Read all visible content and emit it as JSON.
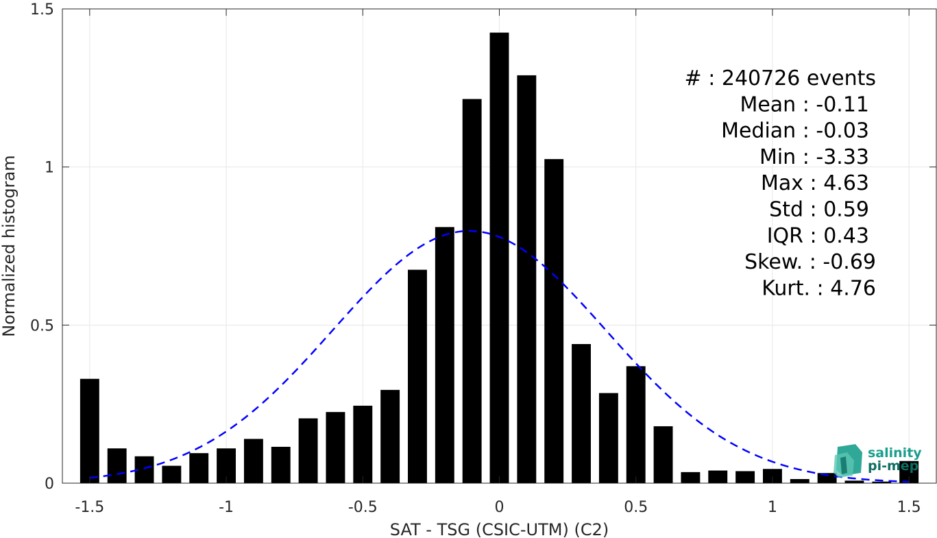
{
  "chart_data": {
    "type": "bar",
    "xlabel": "SAT - TSG (CSIC-UTM) (C2)",
    "ylabel": "Normalized histogram",
    "xlim": [
      -1.6,
      1.6
    ],
    "ylim": [
      0,
      1.5
    ],
    "xticks": [
      -1.5,
      -1,
      -0.5,
      0,
      0.5,
      1,
      1.5
    ],
    "xtick_labels": [
      "-1.5",
      "-1",
      "-0.5",
      "0",
      "0.5",
      "1",
      "1.5"
    ],
    "yticks": [
      0,
      0.5,
      1,
      1.5
    ],
    "ytick_labels": [
      "0",
      "0.5",
      "1",
      "1.5"
    ],
    "grid": true,
    "bar_color": "#000000",
    "bar_width": 0.07,
    "bins": [
      {
        "x": -1.5,
        "value": 0.33
      },
      {
        "x": -1.4,
        "value": 0.11
      },
      {
        "x": -1.3,
        "value": 0.085
      },
      {
        "x": -1.2,
        "value": 0.055
      },
      {
        "x": -1.1,
        "value": 0.095
      },
      {
        "x": -1.0,
        "value": 0.11
      },
      {
        "x": -0.9,
        "value": 0.14
      },
      {
        "x": -0.8,
        "value": 0.115
      },
      {
        "x": -0.7,
        "value": 0.205
      },
      {
        "x": -0.6,
        "value": 0.225
      },
      {
        "x": -0.5,
        "value": 0.245
      },
      {
        "x": -0.4,
        "value": 0.295
      },
      {
        "x": -0.3,
        "value": 0.675
      },
      {
        "x": -0.2,
        "value": 0.81
      },
      {
        "x": -0.1,
        "value": 1.215
      },
      {
        "x": 0.0,
        "value": 1.425
      },
      {
        "x": 0.1,
        "value": 1.29
      },
      {
        "x": 0.2,
        "value": 1.025
      },
      {
        "x": 0.3,
        "value": 0.44
      },
      {
        "x": 0.4,
        "value": 0.285
      },
      {
        "x": 0.5,
        "value": 0.37
      },
      {
        "x": 0.6,
        "value": 0.18
      },
      {
        "x": 0.7,
        "value": 0.035
      },
      {
        "x": 0.8,
        "value": 0.04
      },
      {
        "x": 0.9,
        "value": 0.038
      },
      {
        "x": 1.0,
        "value": 0.045
      },
      {
        "x": 1.1,
        "value": 0.013
      },
      {
        "x": 1.2,
        "value": 0.032
      },
      {
        "x": 1.3,
        "value": 0.008
      },
      {
        "x": 1.4,
        "value": 0.005
      },
      {
        "x": 1.5,
        "value": 0.07
      }
    ],
    "fit_curve": {
      "style": "dashed",
      "color": "#0000ff",
      "mean": -0.11,
      "std": 0.5,
      "x_range": [
        -1.5,
        1.5
      ]
    },
    "stats": [
      {
        "label": "#  ",
        "value": ": 240726 events"
      },
      {
        "label": "Mean ",
        "value": ": -0.11"
      },
      {
        "label": "Median ",
        "value": ": -0.03"
      },
      {
        "label": "Min ",
        "value": ": -3.33"
      },
      {
        "label": "Max ",
        "value": ": 4.63"
      },
      {
        "label": "Std ",
        "value": ": 0.59"
      },
      {
        "label": "IQR ",
        "value": ": 0.43"
      },
      {
        "label": "Skew. ",
        "value": ": -0.69"
      },
      {
        "label": "Kurt. ",
        "value": ": 4.76"
      }
    ]
  },
  "logo": {
    "line1": "salinity",
    "line2": "pi-mep",
    "color": "#1a9e8c"
  }
}
